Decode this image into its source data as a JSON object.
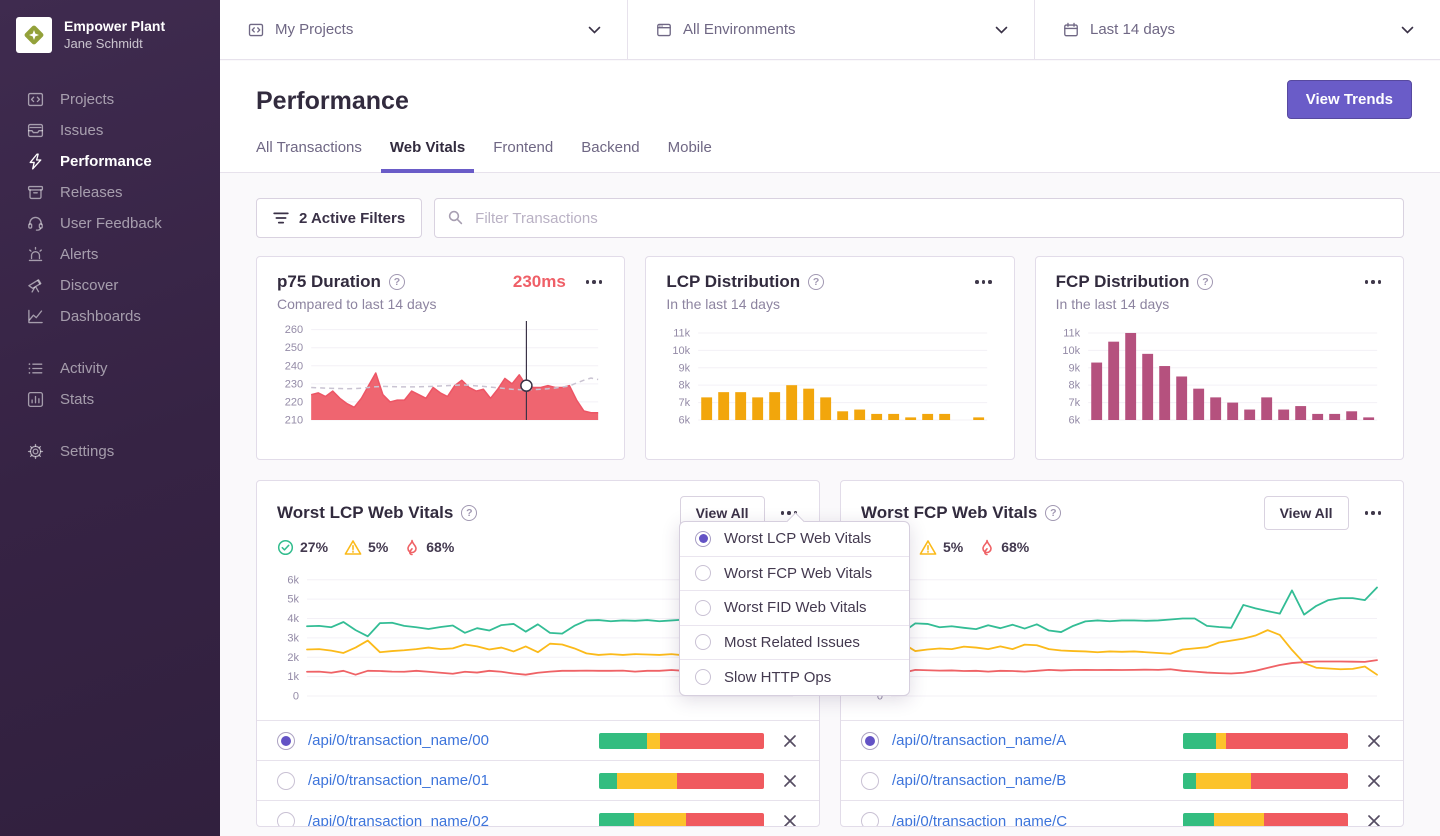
{
  "colors": {
    "accent": "#6A5CC8",
    "sidebar_bg": "#362344",
    "link_blue": "#3D74DB",
    "chart_red": "#EF626C",
    "chart_amber": "#F2A60C",
    "chart_mauve": "#B5517E",
    "chart_green": "#33BD95",
    "chart_yellow": "#FBBA1A",
    "seg_green": "#33BD80",
    "seg_yellow": "#FCC32B",
    "seg_red": "#F05A5F"
  },
  "sidebar": {
    "org_name": "Empower Plant",
    "user_name": "Jane Schmidt",
    "nav_main": [
      {
        "label": "Projects",
        "icon": "projects-icon",
        "active": false
      },
      {
        "label": "Issues",
        "icon": "issues-icon",
        "active": false
      },
      {
        "label": "Performance",
        "icon": "lightning-icon",
        "active": true
      },
      {
        "label": "Releases",
        "icon": "releases-icon",
        "active": false
      },
      {
        "label": "User Feedback",
        "icon": "headset-icon",
        "active": false
      },
      {
        "label": "Alerts",
        "icon": "siren-icon",
        "active": false
      },
      {
        "label": "Discover",
        "icon": "telescope-icon",
        "active": false
      },
      {
        "label": "Dashboards",
        "icon": "dashboards-icon",
        "active": false
      }
    ],
    "nav_secondary": [
      {
        "label": "Activity",
        "icon": "activity-icon",
        "active": false
      },
      {
        "label": "Stats",
        "icon": "stats-icon",
        "active": false
      }
    ],
    "nav_tertiary": [
      {
        "label": "Settings",
        "icon": "gear-icon",
        "active": false
      }
    ]
  },
  "topbar": {
    "filters": [
      {
        "label": "My Projects",
        "icon": "projects-icon"
      },
      {
        "label": "All Environments",
        "icon": "environments-icon"
      },
      {
        "label": "Last 14 days",
        "icon": "calendar-icon"
      }
    ]
  },
  "header": {
    "title": "Performance",
    "view_trends_label": "View Trends",
    "tabs": [
      {
        "label": "All Transactions",
        "active": false
      },
      {
        "label": "Web Vitals",
        "active": true
      },
      {
        "label": "Frontend",
        "active": false
      },
      {
        "label": "Backend",
        "active": false
      },
      {
        "label": "Mobile",
        "active": false
      }
    ]
  },
  "filters": {
    "active_label": "2 Active Filters",
    "search_placeholder": "Filter Transactions"
  },
  "cards": {
    "p75": {
      "title": "p75 Duration",
      "value": "230ms",
      "subtitle": "Compared to last 14 days"
    },
    "lcp_dist": {
      "title": "LCP Distribution",
      "subtitle": "In the last 14 days"
    },
    "fcp_dist": {
      "title": "FCP Distribution",
      "subtitle": "In the last 14 days"
    },
    "worst_lcp": {
      "title": "Worst LCP Web Vitals",
      "view_all_label": "View All",
      "stats": [
        {
          "icon": "check-circle-icon",
          "value": "27%"
        },
        {
          "icon": "warning-triangle-icon",
          "value": "5%"
        },
        {
          "icon": "flame-icon",
          "value": "68%"
        }
      ],
      "rows": [
        {
          "label": "/api/0/transaction_name/00",
          "selected": true,
          "breakdown": [
            29,
            8,
            63
          ]
        },
        {
          "label": "/api/0/transaction_name/01",
          "selected": false,
          "breakdown": [
            11,
            36,
            53
          ]
        },
        {
          "label": "/api/0/transaction_name/02",
          "selected": false,
          "breakdown": [
            21,
            32,
            47
          ]
        }
      ]
    },
    "worst_fcp": {
      "title": "Worst FCP Web Vitals",
      "view_all_label": "View All",
      "stats": [
        {
          "icon": "warning-triangle-icon",
          "value": "5%"
        },
        {
          "icon": "flame-icon",
          "value": "68%"
        }
      ],
      "rows": [
        {
          "label": "/api/0/transaction_name/A",
          "selected": true,
          "breakdown": [
            20,
            6,
            74
          ]
        },
        {
          "label": "/api/0/transaction_name/B",
          "selected": false,
          "breakdown": [
            8,
            33,
            59
          ]
        },
        {
          "label": "/api/0/transaction_name/C",
          "selected": false,
          "breakdown": [
            19,
            30,
            51
          ]
        }
      ]
    }
  },
  "dropdown": {
    "items": [
      {
        "label": "Worst LCP Web Vitals",
        "selected": true
      },
      {
        "label": "Worst FCP Web Vitals",
        "selected": false
      },
      {
        "label": "Worst FID Web Vitals",
        "selected": false
      },
      {
        "label": "Most Related Issues",
        "selected": false
      },
      {
        "label": "Slow HTTP Ops",
        "selected": false
      }
    ]
  },
  "chart_data": [
    {
      "id": "p75",
      "type": "area",
      "title": "p75 Duration",
      "ymin": 210,
      "ymax": 262,
      "lpad": 34,
      "ticks": [
        {
          "v": 260,
          "l": "260"
        },
        {
          "v": 250,
          "l": "250"
        },
        {
          "v": 240,
          "l": "240"
        },
        {
          "v": 230,
          "l": "230"
        },
        {
          "v": 220,
          "l": "220"
        },
        {
          "v": 210,
          "l": "210"
        }
      ],
      "color": "#EF6570",
      "line_color": "#ED5565",
      "previous_color": "#C9C3D2",
      "values": [
        224,
        225,
        223,
        226,
        222,
        219,
        217,
        222,
        229,
        236,
        224,
        220,
        221,
        221,
        226,
        224,
        222,
        228,
        225,
        223,
        229,
        232,
        228,
        226,
        227,
        222,
        227,
        233,
        230,
        235,
        229,
        228,
        228,
        229,
        228,
        228,
        229,
        221,
        215,
        214,
        214
      ],
      "previous": [
        228,
        227.8,
        227.6,
        227.5,
        227.4,
        227.3,
        227.4,
        227.6,
        228,
        228.4,
        228.6,
        228.5,
        228.4,
        228.3,
        228.3,
        228.4,
        228.5,
        228.6,
        228.8,
        229,
        229.2,
        229.4,
        229.2,
        228.9,
        228.6,
        228.2,
        227.8,
        227.4,
        227,
        226.8,
        226.7,
        226.8,
        227,
        227.3,
        227.7,
        228.2,
        228.8,
        230.5,
        232,
        233.2,
        232.4
      ],
      "marker": {
        "index": 30,
        "value": 229
      }
    },
    {
      "id": "lcp_dist",
      "type": "bar",
      "title": "LCP Distribution",
      "ymin": 6000,
      "ymax": 11400,
      "lpad": 32,
      "ticks": [
        {
          "v": 11000,
          "l": "11k"
        },
        {
          "v": 10000,
          "l": "10k"
        },
        {
          "v": 9000,
          "l": "9k"
        },
        {
          "v": 8000,
          "l": "8k"
        },
        {
          "v": 7000,
          "l": "7k"
        },
        {
          "v": 6000,
          "l": "6k"
        }
      ],
      "color": "#F2A60C",
      "values": [
        7300,
        7600,
        7600,
        7300,
        7600,
        8000,
        7800,
        7300,
        6500,
        6600,
        6350,
        6350,
        6150,
        6350,
        6350,
        6000,
        6150
      ]
    },
    {
      "id": "fcp_dist",
      "type": "bar",
      "title": "FCP Distribution",
      "ymin": 6000,
      "ymax": 11400,
      "lpad": 32,
      "ticks": [
        {
          "v": 11000,
          "l": "11k"
        },
        {
          "v": 10000,
          "l": "10k"
        },
        {
          "v": 9000,
          "l": "9k"
        },
        {
          "v": 8000,
          "l": "8k"
        },
        {
          "v": 7000,
          "l": "7k"
        },
        {
          "v": 6000,
          "l": "6k"
        }
      ],
      "color": "#B5517E",
      "values": [
        9300,
        10500,
        11000,
        9800,
        9100,
        8500,
        7800,
        7300,
        7000,
        6600,
        7300,
        6600,
        6800,
        6350,
        6350,
        6500,
        6150
      ]
    },
    {
      "id": "worst_lcp",
      "type": "line",
      "title": "Worst LCP Web Vitals",
      "ymin": 0,
      "ymax": 6400,
      "lpad": 30,
      "ticks": [
        {
          "v": 6000,
          "l": "6k"
        },
        {
          "v": 5000,
          "l": "5k"
        },
        {
          "v": 4000,
          "l": "4k"
        },
        {
          "v": 3000,
          "l": "3k"
        },
        {
          "v": 2000,
          "l": "2k"
        },
        {
          "v": 1000,
          "l": "1k"
        },
        {
          "v": 0,
          "l": "0"
        }
      ],
      "series": [
        {
          "name": "good",
          "color": "#33BD95",
          "values": [
            3600,
            3620,
            3550,
            3820,
            3400,
            3080,
            3760,
            3780,
            3620,
            3550,
            3460,
            3560,
            3640,
            3260,
            3500,
            3380,
            3660,
            3720,
            3320,
            3700,
            3260,
            3220,
            3620,
            3900,
            3920,
            3860,
            3900,
            3880,
            3920,
            3860,
            3900,
            3940,
            3900,
            3950,
            4100,
            4100,
            3500,
            3450,
            3430,
            5200,
            4620
          ]
        },
        {
          "name": "meh",
          "color": "#FBBA1A",
          "values": [
            2400,
            2420,
            2340,
            2220,
            2500,
            2860,
            2260,
            2320,
            2360,
            2420,
            2500,
            2420,
            2460,
            2660,
            2560,
            2400,
            2500,
            2300,
            2560,
            2260,
            2700,
            2660,
            2460,
            2200,
            2120,
            2160,
            2120,
            2160,
            2140,
            2120,
            2160,
            2100,
            2060,
            1960,
            1960,
            2360,
            2400,
            2520,
            2950,
            3100,
            3400
          ]
        },
        {
          "name": "poor",
          "color": "#EF6266",
          "values": [
            1250,
            1260,
            1200,
            1300,
            1100,
            1300,
            1290,
            1260,
            1250,
            1300,
            1250,
            1200,
            1150,
            1250,
            1210,
            1300,
            1250,
            1160,
            1100,
            1200,
            1260,
            1300,
            1300,
            1310,
            1300,
            1300,
            1310,
            1260,
            1300,
            1300,
            1340,
            1300,
            1300,
            1250,
            1340,
            1360,
            1300,
            1150,
            1050,
            960,
            900
          ]
        }
      ]
    },
    {
      "id": "worst_fcp",
      "type": "line",
      "title": "Worst FCP Web Vitals",
      "ymin": 0,
      "ymax": 6400,
      "lpad": 30,
      "ticks": [
        {
          "v": 6000,
          "l": "6k"
        },
        {
          "v": 5000,
          "l": "5k"
        },
        {
          "v": 4000,
          "l": "4k"
        },
        {
          "v": 3000,
          "l": "3k"
        },
        {
          "v": 2000,
          "l": "2k"
        },
        {
          "v": 1000,
          "l": "1k"
        },
        {
          "v": 0,
          "l": "0"
        }
      ],
      "series": [
        {
          "name": "good",
          "color": "#33BD95",
          "values": [
            3700,
            3300,
            3750,
            3720,
            3550,
            3600,
            3520,
            3450,
            3650,
            3500,
            3680,
            3480,
            3700,
            3380,
            3300,
            3620,
            3850,
            3900,
            3860,
            3900,
            3900,
            3880,
            3900,
            3950,
            4000,
            4000,
            3620,
            3560,
            3520,
            4700,
            4520,
            4380,
            4250,
            5450,
            4200,
            4650,
            4950,
            5050,
            5050,
            4950,
            5600
          ],
          "visible": true
        },
        {
          "name": "meh",
          "color": "#FBBA1A",
          "values": [
            2350,
            2700,
            2320,
            2400,
            2450,
            2420,
            2550,
            2500,
            2420,
            2560,
            2420,
            2650,
            2620,
            2420,
            2350,
            2320,
            2300,
            2260,
            2300,
            2280,
            2300,
            2260,
            2220,
            2180,
            2400,
            2460,
            2520,
            2760,
            2860,
            2960,
            3120,
            3400,
            3150,
            2380,
            1700,
            1460,
            1420,
            1380,
            1400,
            1520,
            1100
          ]
        },
        {
          "name": "poor",
          "color": "#EF6266",
          "values": [
            1300,
            1200,
            1350,
            1330,
            1310,
            1320,
            1290,
            1300,
            1260,
            1300,
            1290,
            1260,
            1300,
            1350,
            1320,
            1340,
            1350,
            1340,
            1350,
            1340,
            1350,
            1360,
            1350,
            1380,
            1300,
            1260,
            1210,
            1180,
            1160,
            1200,
            1300,
            1450,
            1600,
            1700,
            1750,
            1780,
            1780,
            1780,
            1770,
            1760,
            1850
          ]
        }
      ]
    }
  ]
}
